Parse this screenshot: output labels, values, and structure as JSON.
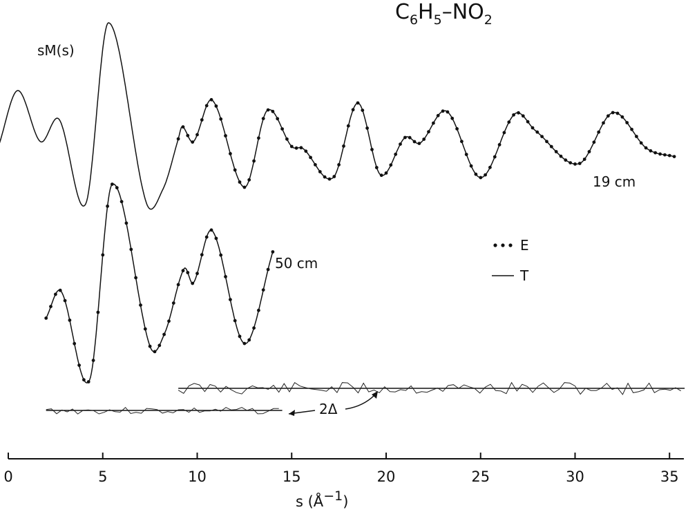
{
  "chart_data": {
    "type": "line",
    "title": {
      "pre": "C",
      "sub1": "6",
      "mid": "H",
      "sub2": "5",
      "post": "–NO",
      "sub3": "2"
    },
    "ylabel": "sM(s)",
    "xlabel": {
      "base": "s (Å",
      "sup": "−1",
      "close": ")"
    },
    "x_range": [
      0,
      36
    ],
    "x_ticks": [
      0,
      5,
      10,
      15,
      20,
      25,
      30,
      35
    ],
    "x_tick_labels": [
      "0",
      "5",
      "10",
      "15",
      "20",
      "25",
      "30",
      "35"
    ],
    "legend": {
      "experimental": "E",
      "theoretical": "T"
    },
    "curves": [
      {
        "label": "19 cm",
        "x_start": 9.0,
        "x_end": 35.3,
        "lead_x_start": -0.5,
        "points": [
          [
            -0.5,
            0.05
          ],
          [
            0.5,
            0.84
          ],
          [
            1.7,
            0.1
          ],
          [
            2.7,
            0.42
          ],
          [
            4.1,
            -0.8
          ],
          [
            5.3,
            1.82
          ],
          [
            7.3,
            -0.78
          ],
          [
            8.2,
            -0.58
          ],
          [
            9.0,
            0.14
          ],
          [
            9.2,
            0.32
          ],
          [
            9.8,
            0.1
          ],
          [
            10.8,
            0.7
          ],
          [
            12.5,
            -0.56
          ],
          [
            13.7,
            0.55
          ],
          [
            15.0,
            0.03
          ],
          [
            15.6,
            0.0
          ],
          [
            17.2,
            -0.42
          ],
          [
            18.5,
            0.66
          ],
          [
            19.7,
            -0.38
          ],
          [
            21.0,
            0.16
          ],
          [
            21.8,
            0.08
          ],
          [
            23.2,
            0.54
          ],
          [
            25.0,
            -0.42
          ],
          [
            26.8,
            0.5
          ],
          [
            27.9,
            0.26
          ],
          [
            30.2,
            -0.22
          ],
          [
            32.0,
            0.52
          ],
          [
            33.8,
            0.0
          ],
          [
            35.3,
            -0.12
          ]
        ]
      },
      {
        "label": "50 cm",
        "x_start": 2.0,
        "x_end": 14.0,
        "lead_x_start": 2.0,
        "points": [
          [
            2.0,
            -0.2
          ],
          [
            2.8,
            0.18
          ],
          [
            4.3,
            -1.08
          ],
          [
            5.5,
            1.7
          ],
          [
            7.5,
            -0.6
          ],
          [
            8.3,
            -0.4
          ],
          [
            9.3,
            0.5
          ],
          [
            9.8,
            0.3
          ],
          [
            10.8,
            1.04
          ],
          [
            12.5,
            -0.56
          ],
          [
            14.0,
            0.74
          ]
        ]
      }
    ],
    "difference_curves": [
      {
        "label": "2Δ",
        "x_start": 2.0,
        "x_end": 14.5,
        "baseline": -0.05
      },
      {
        "label": "2Δ",
        "x_start": 9.0,
        "x_end": 35.8,
        "baseline": 0.0
      }
    ]
  }
}
